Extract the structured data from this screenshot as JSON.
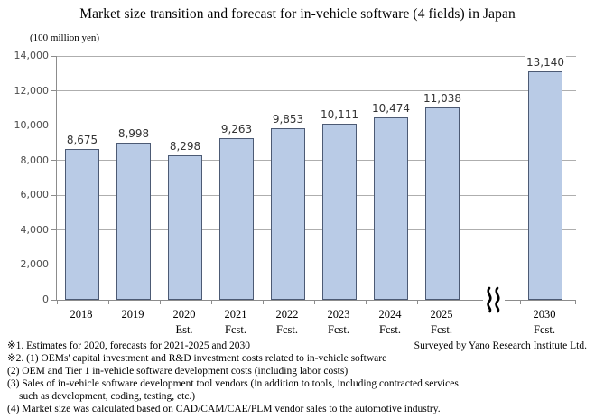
{
  "chart_data": {
    "type": "bar",
    "title": "Market size transition and forecast for in-vehicle software (4 fields) in Japan",
    "unit_label": "(100 million yen)",
    "categories": [
      "2018",
      "2019",
      "2020",
      "2021",
      "2022",
      "2023",
      "2024",
      "2025",
      "2030"
    ],
    "category_sublabels": [
      "",
      "",
      "Est.",
      "Fcst.",
      "Fcst.",
      "Fcst.",
      "Fcst.",
      "Fcst.",
      "Fcst."
    ],
    "values": [
      8675,
      8998,
      8298,
      9263,
      9853,
      10111,
      10474,
      11038,
      13140
    ],
    "value_labels": [
      "8,675",
      "8,998",
      "8,298",
      "9,263",
      "9,853",
      "10,111",
      "10,474",
      "11,038",
      "13,140"
    ],
    "ylim": [
      0,
      14000
    ],
    "ytick_step": 2000,
    "ytick_labels": [
      "0",
      "2,000",
      "4,000",
      "6,000",
      "8,000",
      "10,000",
      "12,000",
      "14,000"
    ],
    "axis_break_between": [
      "2025",
      "2030"
    ],
    "legend": "none",
    "grid": "horizontal",
    "colors": {
      "bar_fill": "#b9cbe6",
      "bar_border": "#4c5a74",
      "gridline": "#aeaeae",
      "axis_line": "#8c8c8c"
    }
  },
  "footer": {
    "notes": [
      "※1.  Estimates for 2020, forecasts for 2021-2025 and 2030",
      "※2.  (1) OEMs' capital investment and R&D investment costs related to in-vehicle software",
      "(2) OEM and Tier 1 in-vehicle software development costs (including labor costs)",
      "(3) Sales of in-vehicle software development tool vendors (in addition to tools, including contracted services",
      "such as development, coding, testing, etc.)",
      "(4) Market size was calculated based on CAD/CAM/CAE/PLM vendor sales to the automotive industry."
    ],
    "credit": "Surveyed by Yano Research Institute Ltd."
  }
}
